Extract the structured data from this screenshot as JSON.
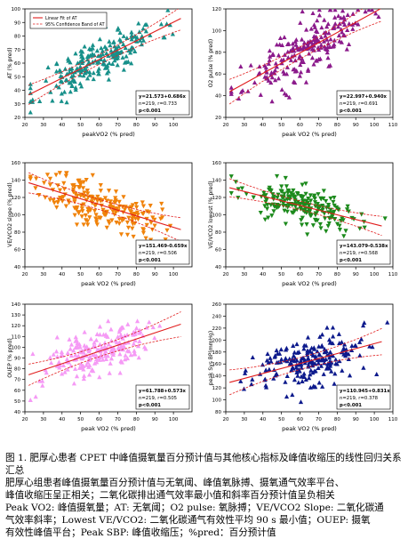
{
  "figure": {
    "title": "图 1. 肥厚心患者 CPET 中峰值摄氧量百分预计值与其他核心指标及峰值收缩压的线性回归关系汇总",
    "legend": [
      "Linear Fit of AT",
      "95% Confidence Band of AT"
    ],
    "body_lines": [
      "肥厚心组患者峰值摄氧量百分预计值与无氧阈、峰值氧脉搏、摄氧通气效率平台、",
      "峰值收缩压呈正相关；二氧化碳排出通气效率最小值和斜率百分预计值呈负相关",
      "Peak VO2: 峰值摄氧量；AT: 无氧阈；O2 pulse: 氧脉搏；VE/VCO2 Slope: 二氧化碳通",
      "气效率斜率；Lowest VE/VCO2: 二氧化碳通气有效性平均 90 s 最小值；OUEP: 摄氧",
      "有效性峰值平台；Peak SBP: 峰值收缩压；%pred：百分预计值"
    ]
  },
  "colors": {
    "line": "#e11d1d",
    "band": "#e11d1d"
  },
  "chart_data": [
    {
      "type": "scatter",
      "panel": "AT",
      "ylabel": "AT (% pred)",
      "xlabel": "peakVO2 (% pred)",
      "color": "#17908a",
      "marker": "triangle-up",
      "xlim": [
        20,
        110
      ],
      "ylim": [
        20,
        100
      ],
      "xticks": [
        20,
        30,
        40,
        50,
        60,
        70,
        80,
        90,
        100
      ],
      "yticks": [
        20,
        30,
        40,
        50,
        60,
        70,
        80,
        90,
        100
      ],
      "fit": {
        "intercept": 21.573,
        "slope": 0.686
      },
      "stats": [
        "y=21.573+0.686x",
        "n=219, r=0.733",
        "p<0.001"
      ],
      "n_points": 219,
      "seed": 11,
      "x_mean": 60,
      "x_sd": 16,
      "resid_sd": 8
    },
    {
      "type": "scatter",
      "panel": "O2 pulse",
      "ylabel": "O2 pulse (% pred)",
      "xlabel": "peak VO2 (% pred)",
      "color": "#8b1a8b",
      "marker": "triangle-up",
      "xlim": [
        20,
        110
      ],
      "ylim": [
        20,
        120
      ],
      "xticks": [
        20,
        30,
        40,
        50,
        60,
        70,
        80,
        90,
        100,
        110
      ],
      "yticks": [
        20,
        40,
        60,
        80,
        100,
        120
      ],
      "fit": {
        "intercept": 22.997,
        "slope": 0.94
      },
      "stats": [
        "y=22.997+0.940x",
        "n=219, r=0.691",
        "p<0.001"
      ],
      "n_points": 219,
      "seed": 23,
      "x_mean": 62,
      "x_sd": 16,
      "resid_sd": 12
    },
    {
      "type": "scatter",
      "panel": "VE/VCO2 slope",
      "ylabel": "VE/VCO2 slope (% pred)",
      "xlabel": "peak VO2 (% pred)",
      "color": "#f0820a",
      "marker": "triangle-down",
      "xlim": [
        20,
        110
      ],
      "ylim": [
        40,
        160
      ],
      "xticks": [
        20,
        30,
        40,
        50,
        60,
        70,
        80,
        90,
        100
      ],
      "yticks": [
        40,
        60,
        80,
        100,
        120,
        140,
        160
      ],
      "fit": {
        "intercept": 151.469,
        "slope": -0.659
      },
      "stats": [
        "y=151.469-0.659x",
        "n=219, r=0.506",
        "p<0.001"
      ],
      "n_points": 219,
      "seed": 37,
      "x_mean": 60,
      "x_sd": 16,
      "resid_sd": 13
    },
    {
      "type": "scatter",
      "panel": "Lowest VE/VCO2",
      "ylabel": "VE/VCO2 lowest (% pred)",
      "xlabel": "peak VO2 (% pred)",
      "color": "#1c8a1c",
      "marker": "triangle-down",
      "xlim": [
        20,
        110
      ],
      "ylim": [
        40,
        160
      ],
      "xticks": [
        20,
        30,
        40,
        50,
        60,
        70,
        80,
        90,
        100,
        110
      ],
      "yticks": [
        40,
        60,
        80,
        100,
        120,
        140,
        160
      ],
      "fit": {
        "intercept": 143.079,
        "slope": -0.538
      },
      "stats": [
        "y=143.079-0.538x",
        "n=219, r=0.568",
        "p<0.001"
      ],
      "n_points": 219,
      "seed": 53,
      "x_mean": 62,
      "x_sd": 16,
      "resid_sd": 11
    },
    {
      "type": "scatter",
      "panel": "OUEP",
      "ylabel": "OUEP (% pred)",
      "xlabel": "peak VO2 (% pred)",
      "color": "#f59af5",
      "marker": "triangle-up",
      "xlim": [
        20,
        110
      ],
      "ylim": [
        40,
        140
      ],
      "xticks": [
        20,
        30,
        40,
        50,
        60,
        70,
        80,
        90,
        100
      ],
      "yticks": [
        40,
        50,
        60,
        70,
        80,
        90,
        100,
        110,
        120,
        130,
        140
      ],
      "fit": {
        "intercept": 61.788,
        "slope": 0.573
      },
      "stats": [
        "y=61.788+0.573x",
        "n=219, r=0.505",
        "p<0.001"
      ],
      "n_points": 219,
      "seed": 71,
      "x_mean": 60,
      "x_sd": 16,
      "resid_sd": 11
    },
    {
      "type": "scatter",
      "panel": "Peak SBP",
      "ylabel": "peak Sys BP(mmHg)",
      "xlabel": "peak VO2 (% pred)",
      "color": "#0d1a8c",
      "marker": "triangle-up",
      "xlim": [
        20,
        110
      ],
      "ylim": [
        80,
        260
      ],
      "xticks": [
        20,
        30,
        40,
        50,
        60,
        70,
        80,
        90,
        100,
        110
      ],
      "yticks": [
        80,
        100,
        120,
        140,
        160,
        180,
        200,
        220,
        240,
        260
      ],
      "fit": {
        "intercept": 110.945,
        "slope": 0.831
      },
      "stats": [
        "y=110.945+0.831x",
        "n=219, r=0.378",
        "p<0.001"
      ],
      "n_points": 219,
      "seed": 97,
      "x_mean": 62,
      "x_sd": 16,
      "resid_sd": 22
    }
  ]
}
